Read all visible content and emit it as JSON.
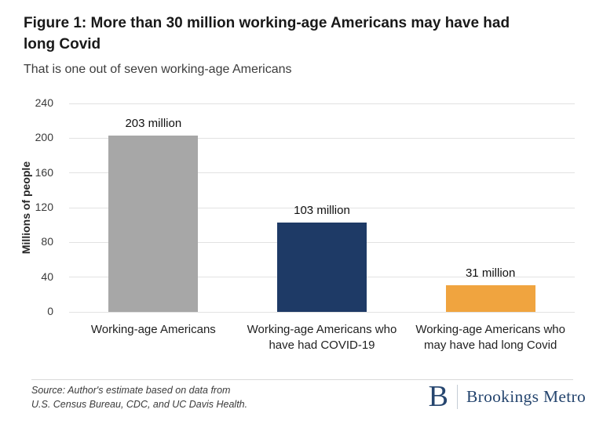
{
  "figure": {
    "title_lines": [
      "Figure 1: More than 30 million working-age Americans may have had",
      "long Covid"
    ],
    "subtitle": "That is one out of seven working-age Americans"
  },
  "chart_data": {
    "type": "bar",
    "title": "Figure 1: More than 30 million working-age Americans may have had long Covid",
    "subtitle": "That is one out of seven working-age Americans",
    "categories": [
      "Working-age Americans",
      "Working-age Americans who have had COVID-19",
      "Working-age Americans who may have had long Covid"
    ],
    "values": [
      203,
      103,
      31
    ],
    "value_labels": [
      "203 million",
      "103 million",
      "31 million"
    ],
    "bar_colors": [
      "#a7a7a7",
      "#1e3a66",
      "#f0a43f"
    ],
    "xlabel": "",
    "ylabel": "Millions of people",
    "ylim": [
      0,
      240
    ],
    "yticks": [
      0,
      40,
      80,
      120,
      160,
      200,
      240
    ],
    "grid": "horizontal",
    "legend_position": "none"
  },
  "footer": {
    "source_lines": [
      "Source: Author's estimate based on data from",
      "U.S. Census Bureau, CDC, and UC Davis Health."
    ],
    "logo": {
      "mark": "B",
      "text": "Brookings Metro",
      "color": "#26466f"
    }
  }
}
